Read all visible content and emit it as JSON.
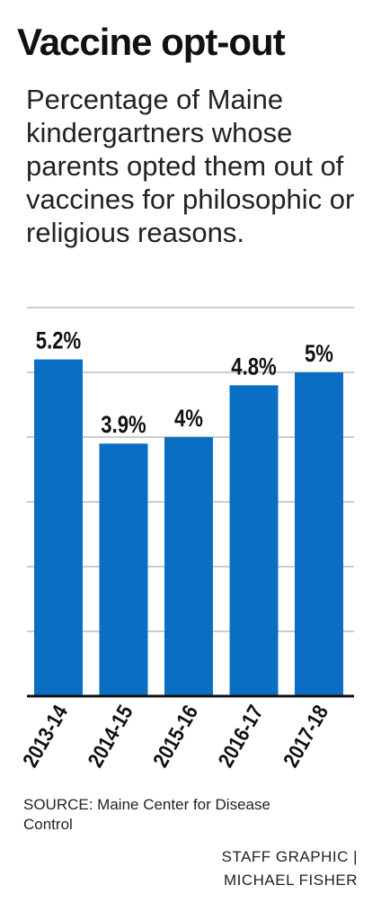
{
  "title": "Vaccine opt-out",
  "subtitle": "Percentage of Maine kindergartners whose parents opted them out of vaccines for philosophic or religious reasons.",
  "source": "SOURCE: Maine Center for Disease Control",
  "credit_line1": "STAFF GRAPHIC |",
  "credit_line2": "MICHAEL FISHER",
  "colors": {
    "bar": "#0a6fc2",
    "grid": "#cccccc",
    "axis": "#111111",
    "text": "#111111"
  },
  "chart_data": {
    "type": "bar",
    "categories": [
      "2013-14",
      "2014-15",
      "2015-16",
      "2016-17",
      "2017-18"
    ],
    "values": [
      5.2,
      3.9,
      4.0,
      4.8,
      5.0
    ],
    "data_labels": [
      "5.2%",
      "3.9%",
      "4%",
      "4.8%",
      "5%"
    ],
    "xlabel": "",
    "ylabel": "",
    "ylim": [
      0,
      6
    ],
    "grid": true
  }
}
